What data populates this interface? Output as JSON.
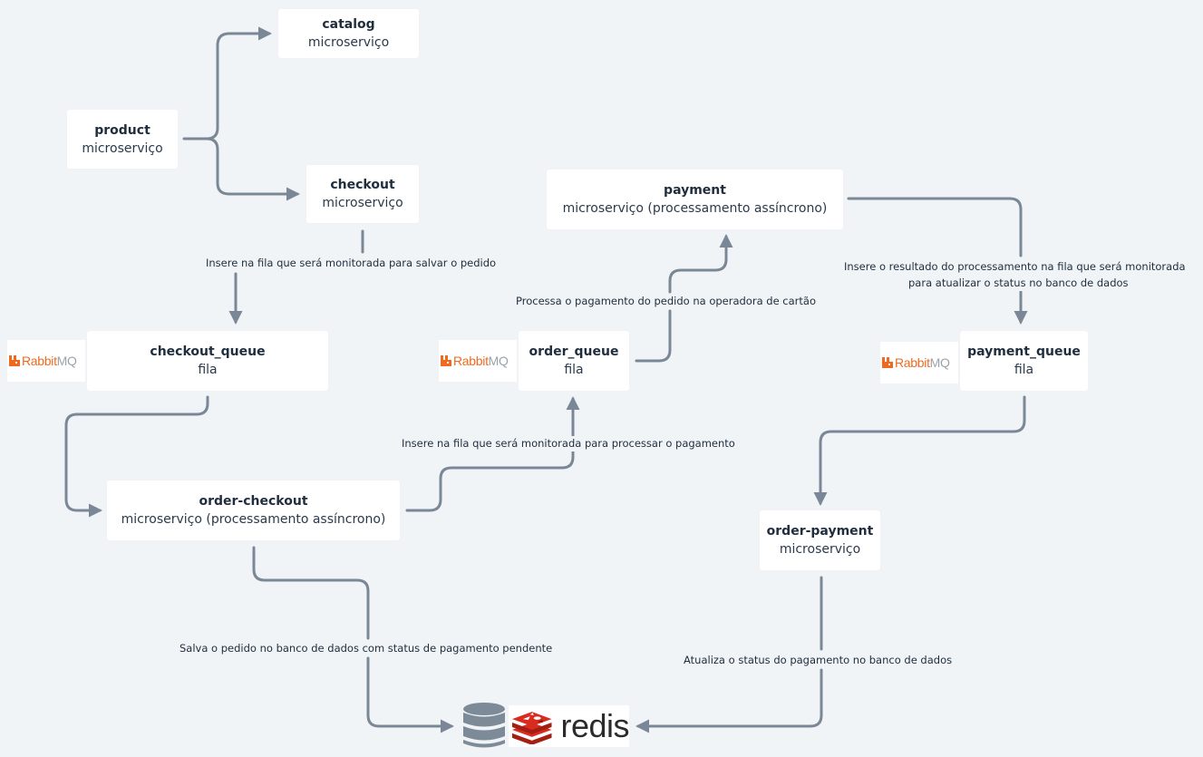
{
  "nodes": {
    "catalog": {
      "title": "catalog",
      "subtitle": "microserviço"
    },
    "product": {
      "title": "product",
      "subtitle": "microserviço"
    },
    "checkout": {
      "title": "checkout",
      "subtitle": "microserviço"
    },
    "payment": {
      "title": "payment",
      "subtitle": "microserviço (processamento assíncrono)"
    },
    "checkout_queue": {
      "title": "checkout_queue",
      "subtitle": "fila"
    },
    "order_queue": {
      "title": "order_queue",
      "subtitle": "fila"
    },
    "payment_queue": {
      "title": "payment_queue",
      "subtitle": "fila"
    },
    "order_checkout": {
      "title": "order-checkout",
      "subtitle": "microserviço (processamento assíncrono)"
    },
    "order_payment": {
      "title": "order-payment",
      "subtitle": "microserviço"
    }
  },
  "edge_labels": {
    "checkout_to_queue": "Insere na fila que será monitorada para salvar o pedido",
    "order_queue_to_payment": "Processa o pagamento do pedido na operadora de cartão",
    "payment_to_queue_line1": "Insere o resultado do processamento na fila que será monitorada",
    "payment_to_queue_line2": "para atualizar o status no banco de dados",
    "order_checkout_to_queue": "Insere na fila que será monitorada para processar o pagamento",
    "order_checkout_to_db": "Salva o pedido no banco de dados com status de pagamento pendente",
    "order_payment_to_db": "Atualiza o status do pagamento no banco de dados"
  },
  "logos": {
    "rabbitmq_part1": "Rabbit",
    "rabbitmq_part2": "MQ",
    "redis": "redis"
  },
  "colors": {
    "background": "#f1f4f7",
    "connector": "#7a8796",
    "rabbitmq_orange": "#ef6a1f",
    "redis_red": "#d82c20",
    "database_gray": "#7d8a98"
  },
  "icons": [
    "database-icon",
    "rabbitmq-logo",
    "redis-logo"
  ]
}
